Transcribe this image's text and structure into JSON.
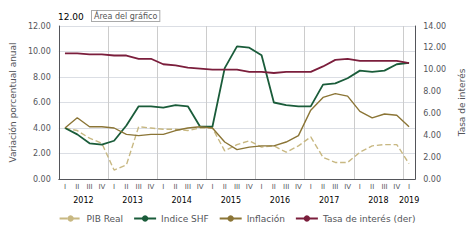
{
  "chart_data": {
    "type": "line",
    "categories": [
      "I",
      "II",
      "III",
      "IV",
      "I",
      "II",
      "III",
      "IV",
      "I",
      "II",
      "III",
      "IV",
      "I",
      "II",
      "III",
      "IV",
      "I",
      "II",
      "III",
      "IV",
      "I",
      "II",
      "III",
      "IV",
      "I",
      "II",
      "III",
      "IV",
      "I"
    ],
    "years": [
      2012,
      2012,
      2012,
      2012,
      2013,
      2013,
      2013,
      2013,
      2014,
      2014,
      2014,
      2014,
      2015,
      2015,
      2015,
      2015,
      2016,
      2016,
      2016,
      2016,
      2017,
      2017,
      2017,
      2017,
      2018,
      2018,
      2018,
      2018,
      2019
    ],
    "series": [
      {
        "name": "PIB Real",
        "color": "#c8b882",
        "line_style": "dashed",
        "values": [
          4.0,
          3.8,
          3.2,
          2.8,
          0.7,
          1.1,
          4.1,
          4.0,
          3.9,
          3.9,
          3.8,
          4.0,
          4.0,
          2.2,
          2.7,
          3.0,
          2.5,
          2.6,
          2.1,
          2.6,
          3.3,
          1.7,
          1.3,
          1.3,
          2.1,
          2.6,
          2.7,
          2.7,
          1.2
        ]
      },
      {
        "name": "Indice SHF",
        "color": "#1a5c3a",
        "line_style": "solid",
        "values": [
          4.0,
          3.5,
          2.8,
          2.7,
          3.0,
          4.2,
          5.7,
          5.7,
          5.6,
          5.8,
          5.7,
          4.1,
          4.1,
          8.7,
          10.4,
          10.3,
          9.7,
          6.0,
          5.8,
          5.7,
          5.7,
          7.4,
          7.5,
          7.9,
          8.5,
          8.4,
          8.5,
          9.0,
          9.1
        ]
      },
      {
        "name": "Inflación",
        "color": "#8b7536",
        "line_style": "solid",
        "values": [
          4.0,
          4.8,
          4.1,
          4.1,
          4.0,
          3.5,
          3.4,
          3.5,
          3.5,
          3.8,
          4.0,
          4.1,
          4.0,
          2.9,
          2.3,
          2.5,
          2.6,
          2.6,
          2.9,
          3.4,
          5.4,
          6.4,
          6.7,
          6.5,
          5.3,
          4.8,
          5.1,
          5.0,
          4.1
        ]
      },
      {
        "name": "Tasa de interés (der)",
        "color": "#7b1e3c",
        "line_style": "solid",
        "axis": "y2",
        "values": [
          11.5,
          11.5,
          11.4,
          11.4,
          11.3,
          11.3,
          11.0,
          11.0,
          10.5,
          10.4,
          10.2,
          10.1,
          10.0,
          10.0,
          10.0,
          9.8,
          9.8,
          9.7,
          9.8,
          9.8,
          9.8,
          10.3,
          10.9,
          11.0,
          10.8,
          10.8,
          10.8,
          10.8,
          10.6
        ]
      }
    ],
    "ylabel": "Variación porcentual anual",
    "y2label": "Tasa de interés",
    "ylim": [
      0,
      12
    ],
    "yticks": [
      {
        "value": 0,
        "label": "0.00"
      },
      {
        "value": 2,
        "label": "2.00"
      },
      {
        "value": 4,
        "label": "4.00"
      },
      {
        "value": 6,
        "label": "6.00"
      },
      {
        "value": 8,
        "label": "8.00"
      },
      {
        "value": 10,
        "label": "10.00"
      },
      {
        "value": 12,
        "label": "12.00"
      }
    ],
    "y2lim": [
      0,
      14
    ],
    "y2ticks": [
      {
        "value": 0,
        "label": "0.00"
      },
      {
        "value": 2,
        "label": "2.00"
      },
      {
        "value": 4,
        "label": "4.00"
      },
      {
        "value": 6,
        "label": "6.00"
      },
      {
        "value": 8,
        "label": "8.00"
      },
      {
        "value": 10,
        "label": "10.00"
      },
      {
        "value": 12,
        "label": "12.00"
      },
      {
        "value": 14,
        "label": "14.00"
      }
    ],
    "grid": true,
    "legend": "bottom",
    "annotations": [
      "12.00",
      "Área del gráfico"
    ]
  }
}
